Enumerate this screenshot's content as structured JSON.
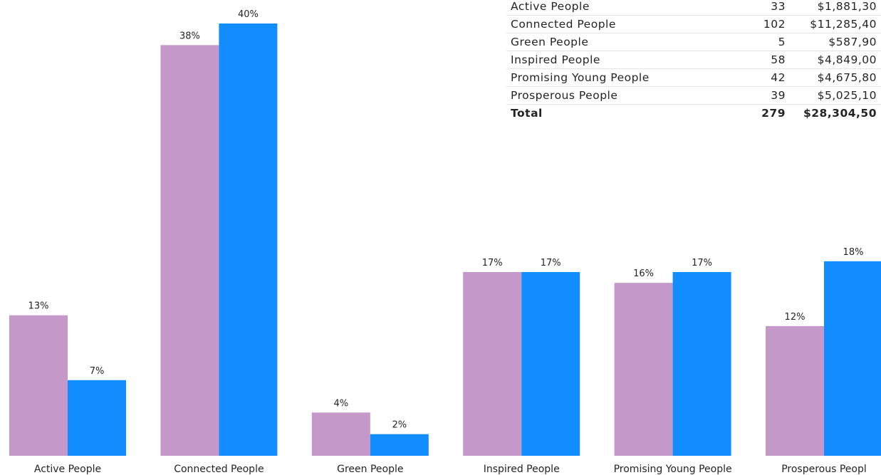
{
  "table": {
    "rows": [
      {
        "name": "Active People",
        "count": "33",
        "amount": "$1,881,30"
      },
      {
        "name": "Connected People",
        "count": "102",
        "amount": "$11,285,40"
      },
      {
        "name": "Green People",
        "count": "5",
        "amount": "$587,90"
      },
      {
        "name": "Inspired People",
        "count": "58",
        "amount": "$4,849,00"
      },
      {
        "name": "Promising Young People",
        "count": "42",
        "amount": "$4,675,80"
      },
      {
        "name": "Prosperous People",
        "count": "39",
        "amount": "$5,025,10"
      }
    ],
    "total": {
      "name": "Total",
      "count": "279",
      "amount": "$28,304,50"
    }
  },
  "chart_data": {
    "type": "bar",
    "categories": [
      "Active People",
      "Connected People",
      "Green People",
      "Inspired People",
      "Promising Young People",
      "Prosperous Peopl"
    ],
    "series": [
      {
        "values": [
          13,
          38,
          4,
          17,
          16,
          12
        ],
        "labels": [
          "13%",
          "38%",
          "4%",
          "17%",
          "16%",
          "12%"
        ],
        "color": "#c498c9"
      },
      {
        "values": [
          7,
          40,
          2,
          17,
          17,
          18
        ],
        "labels": [
          "7%",
          "40%",
          "2%",
          "17%",
          "17%",
          "18%"
        ],
        "color": "#118dff"
      }
    ],
    "ylim": [
      0,
      40
    ],
    "grid": false,
    "legend": "none"
  }
}
